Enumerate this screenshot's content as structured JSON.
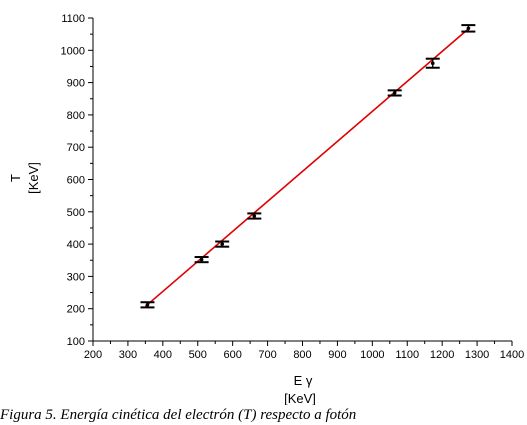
{
  "chart_data": {
    "type": "scatter",
    "xlabel": "E γ",
    "xunit": "[KeV]",
    "ylabel": "T",
    "yunit": "[KeV]",
    "xlim": [
      200,
      1400
    ],
    "ylim": [
      100,
      1100
    ],
    "xticks": [
      200,
      300,
      400,
      500,
      600,
      700,
      800,
      900,
      1000,
      1100,
      1200,
      1300,
      1400
    ],
    "yticks": [
      100,
      200,
      300,
      400,
      500,
      600,
      700,
      800,
      900,
      1000,
      1100
    ],
    "grid": false,
    "series": [
      {
        "kind": "points-with-error-bars",
        "color": "#000000",
        "x": [
          356,
          511,
          570,
          662,
          1064,
          1173,
          1275
        ],
        "y": [
          212,
          352,
          400,
          487,
          868,
          960,
          1068
        ],
        "yerr": [
          8,
          8,
          8,
          8,
          8,
          14,
          10
        ]
      },
      {
        "kind": "fit-line",
        "color": "#e00000",
        "x": [
          350,
          1280
        ],
        "y": [
          207,
          1071
        ]
      }
    ]
  },
  "caption": "Figura 5. Energía cinética del electrón (T) respecto a fotón"
}
